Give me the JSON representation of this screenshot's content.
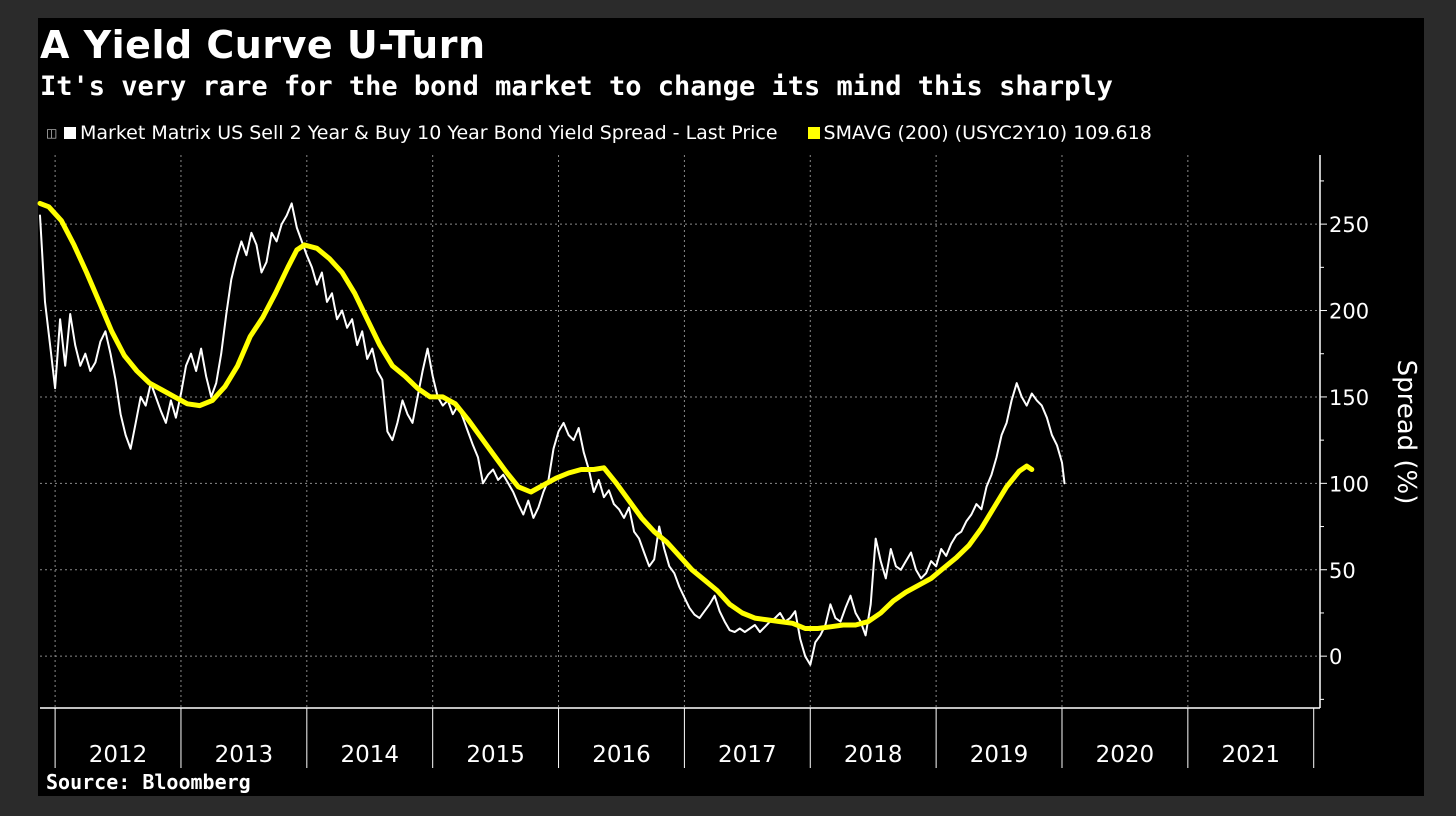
{
  "title": "A Yield Curve U-Turn",
  "subtitle": "It's very rare for the bond market to change its mind this sharply",
  "legend": [
    {
      "label": "Market Matrix US Sell 2 Year & Buy 10 Year Bond Yield Spread - Last Price",
      "color": "#ffffff"
    },
    {
      "label": "SMAVG (200) (USYC2Y10) 109.618",
      "color": "#ffff00"
    }
  ],
  "source": "Source: Bloomberg",
  "colors": {
    "background": "#000000",
    "frame": "#2b2b2b",
    "grid": "#8a8a8a",
    "spread": "#ffffff",
    "sma": "#ffff00"
  },
  "chart_data": {
    "type": "line",
    "title": "A Yield Curve U-Turn",
    "subtitle": "It's very rare for the bond market to change its mind this sharply",
    "ylabel": "Spread (%)",
    "xlabel": "",
    "xlim": [
      2011.38,
      2021.55
    ],
    "ylim": [
      -30,
      290
    ],
    "y_ticks": [
      0,
      50,
      100,
      150,
      200,
      250
    ],
    "x_ticks": [
      2012,
      2013,
      2014,
      2015,
      2016,
      2017,
      2018,
      2019,
      2020,
      2021
    ],
    "grid": true,
    "legend_position": "top",
    "series": [
      {
        "name": "Market Matrix US Sell 2 Year & Buy 10 Year Bond Yield Spread - Last Price",
        "color": "#ffffff",
        "points": [
          [
            2011.38,
            255
          ],
          [
            2011.42,
            205
          ],
          [
            2011.46,
            180
          ],
          [
            2011.5,
            155
          ],
          [
            2011.54,
            195
          ],
          [
            2011.58,
            168
          ],
          [
            2011.62,
            198
          ],
          [
            2011.66,
            180
          ],
          [
            2011.7,
            168
          ],
          [
            2011.74,
            175
          ],
          [
            2011.78,
            165
          ],
          [
            2011.82,
            170
          ],
          [
            2011.86,
            182
          ],
          [
            2011.9,
            188
          ],
          [
            2011.94,
            175
          ],
          [
            2011.98,
            160
          ],
          [
            2012.02,
            140
          ],
          [
            2012.06,
            128
          ],
          [
            2012.1,
            120
          ],
          [
            2012.14,
            135
          ],
          [
            2012.18,
            150
          ],
          [
            2012.22,
            145
          ],
          [
            2012.26,
            158
          ],
          [
            2012.3,
            150
          ],
          [
            2012.34,
            142
          ],
          [
            2012.38,
            135
          ],
          [
            2012.42,
            148
          ],
          [
            2012.46,
            138
          ],
          [
            2012.5,
            152
          ],
          [
            2012.54,
            168
          ],
          [
            2012.58,
            175
          ],
          [
            2012.62,
            165
          ],
          [
            2012.66,
            178
          ],
          [
            2012.7,
            162
          ],
          [
            2012.74,
            150
          ],
          [
            2012.78,
            158
          ],
          [
            2012.82,
            175
          ],
          [
            2012.86,
            198
          ],
          [
            2012.9,
            218
          ],
          [
            2012.94,
            230
          ],
          [
            2012.98,
            240
          ],
          [
            2013.02,
            232
          ],
          [
            2013.06,
            245
          ],
          [
            2013.1,
            238
          ],
          [
            2013.14,
            222
          ],
          [
            2013.18,
            228
          ],
          [
            2013.22,
            245
          ],
          [
            2013.26,
            240
          ],
          [
            2013.3,
            250
          ],
          [
            2013.34,
            255
          ],
          [
            2013.38,
            262
          ],
          [
            2013.42,
            248
          ],
          [
            2013.46,
            240
          ],
          [
            2013.5,
            232
          ],
          [
            2013.54,
            225
          ],
          [
            2013.58,
            215
          ],
          [
            2013.62,
            222
          ],
          [
            2013.66,
            205
          ],
          [
            2013.7,
            210
          ],
          [
            2013.74,
            195
          ],
          [
            2013.78,
            200
          ],
          [
            2013.82,
            190
          ],
          [
            2013.86,
            195
          ],
          [
            2013.9,
            180
          ],
          [
            2013.94,
            188
          ],
          [
            2013.98,
            172
          ],
          [
            2014.02,
            178
          ],
          [
            2014.06,
            165
          ],
          [
            2014.1,
            160
          ],
          [
            2014.14,
            130
          ],
          [
            2014.18,
            125
          ],
          [
            2014.22,
            135
          ],
          [
            2014.26,
            148
          ],
          [
            2014.3,
            140
          ],
          [
            2014.34,
            135
          ],
          [
            2014.38,
            150
          ],
          [
            2014.42,
            165
          ],
          [
            2014.46,
            178
          ],
          [
            2014.5,
            162
          ],
          [
            2014.54,
            150
          ],
          [
            2014.58,
            145
          ],
          [
            2014.62,
            148
          ],
          [
            2014.66,
            140
          ],
          [
            2014.7,
            145
          ],
          [
            2014.74,
            138
          ],
          [
            2014.78,
            130
          ],
          [
            2014.82,
            122
          ],
          [
            2014.86,
            115
          ],
          [
            2014.9,
            100
          ],
          [
            2014.94,
            105
          ],
          [
            2014.98,
            108
          ],
          [
            2015.02,
            102
          ],
          [
            2015.06,
            105
          ],
          [
            2015.1,
            100
          ],
          [
            2015.14,
            95
          ],
          [
            2015.18,
            88
          ],
          [
            2015.22,
            82
          ],
          [
            2015.26,
            90
          ],
          [
            2015.3,
            80
          ],
          [
            2015.34,
            86
          ],
          [
            2015.38,
            95
          ],
          [
            2015.42,
            102
          ],
          [
            2015.46,
            120
          ],
          [
            2015.5,
            130
          ],
          [
            2015.54,
            135
          ],
          [
            2015.58,
            128
          ],
          [
            2015.62,
            125
          ],
          [
            2015.66,
            132
          ],
          [
            2015.7,
            118
          ],
          [
            2015.74,
            108
          ],
          [
            2015.78,
            95
          ],
          [
            2015.82,
            102
          ],
          [
            2015.86,
            92
          ],
          [
            2015.9,
            96
          ],
          [
            2015.94,
            88
          ],
          [
            2015.98,
            85
          ],
          [
            2016.02,
            80
          ],
          [
            2016.06,
            86
          ],
          [
            2016.1,
            72
          ],
          [
            2016.14,
            68
          ],
          [
            2016.18,
            60
          ],
          [
            2016.22,
            52
          ],
          [
            2016.26,
            56
          ],
          [
            2016.3,
            75
          ],
          [
            2016.34,
            62
          ],
          [
            2016.38,
            52
          ],
          [
            2016.42,
            48
          ],
          [
            2016.46,
            40
          ],
          [
            2016.5,
            34
          ],
          [
            2016.54,
            28
          ],
          [
            2016.58,
            24
          ],
          [
            2016.62,
            22
          ],
          [
            2016.66,
            26
          ],
          [
            2016.7,
            30
          ],
          [
            2016.74,
            35
          ],
          [
            2016.78,
            26
          ],
          [
            2016.82,
            20
          ],
          [
            2016.86,
            15
          ],
          [
            2016.9,
            14
          ],
          [
            2016.94,
            16
          ],
          [
            2016.98,
            14
          ],
          [
            2017.02,
            16
          ],
          [
            2017.06,
            18
          ],
          [
            2017.1,
            14
          ],
          [
            2017.14,
            17
          ],
          [
            2017.18,
            20
          ],
          [
            2017.22,
            22
          ],
          [
            2017.26,
            25
          ],
          [
            2017.3,
            20
          ],
          [
            2017.34,
            22
          ],
          [
            2017.38,
            26
          ],
          [
            2017.42,
            10
          ],
          [
            2017.46,
            0
          ],
          [
            2017.5,
            -5
          ],
          [
            2017.54,
            8
          ],
          [
            2017.58,
            12
          ],
          [
            2017.62,
            18
          ],
          [
            2017.66,
            30
          ],
          [
            2017.7,
            22
          ],
          [
            2017.74,
            20
          ],
          [
            2017.78,
            28
          ],
          [
            2017.82,
            35
          ],
          [
            2017.86,
            25
          ],
          [
            2017.9,
            20
          ],
          [
            2017.94,
            12
          ],
          [
            2017.98,
            30
          ],
          [
            2018.02,
            68
          ],
          [
            2018.06,
            55
          ],
          [
            2018.1,
            45
          ],
          [
            2018.14,
            62
          ],
          [
            2018.18,
            52
          ],
          [
            2018.22,
            50
          ],
          [
            2018.26,
            55
          ],
          [
            2018.3,
            60
          ],
          [
            2018.34,
            50
          ],
          [
            2018.38,
            45
          ],
          [
            2018.42,
            48
          ],
          [
            2018.46,
            55
          ],
          [
            2018.5,
            52
          ],
          [
            2018.54,
            62
          ],
          [
            2018.58,
            58
          ],
          [
            2018.62,
            65
          ],
          [
            2018.66,
            70
          ],
          [
            2018.7,
            72
          ],
          [
            2018.74,
            78
          ],
          [
            2018.78,
            82
          ],
          [
            2018.82,
            88
          ],
          [
            2018.86,
            85
          ],
          [
            2018.9,
            98
          ],
          [
            2018.94,
            105
          ],
          [
            2018.98,
            115
          ],
          [
            2019.02,
            128
          ],
          [
            2019.06,
            135
          ],
          [
            2019.1,
            148
          ],
          [
            2019.14,
            158
          ],
          [
            2019.18,
            150
          ],
          [
            2019.22,
            145
          ],
          [
            2019.26,
            152
          ],
          [
            2019.3,
            148
          ],
          [
            2019.34,
            145
          ],
          [
            2019.38,
            138
          ],
          [
            2019.42,
            128
          ],
          [
            2019.46,
            122
          ],
          [
            2019.5,
            112
          ],
          [
            2019.52,
            100
          ]
        ]
      },
      {
        "name": "SMAVG (200) (USYC2Y10) 109.618",
        "color": "#ffff00",
        "points": [
          [
            2011.38,
            262
          ],
          [
            2011.45,
            260
          ],
          [
            2011.55,
            252
          ],
          [
            2011.65,
            238
          ],
          [
            2011.75,
            222
          ],
          [
            2011.85,
            205
          ],
          [
            2011.95,
            188
          ],
          [
            2012.05,
            174
          ],
          [
            2012.15,
            165
          ],
          [
            2012.25,
            158
          ],
          [
            2012.35,
            154
          ],
          [
            2012.45,
            150
          ],
          [
            2012.55,
            146
          ],
          [
            2012.65,
            145
          ],
          [
            2012.75,
            148
          ],
          [
            2012.85,
            156
          ],
          [
            2012.95,
            168
          ],
          [
            2013.05,
            185
          ],
          [
            2013.15,
            196
          ],
          [
            2013.25,
            210
          ],
          [
            2013.35,
            225
          ],
          [
            2013.42,
            235
          ],
          [
            2013.48,
            238
          ],
          [
            2013.58,
            236
          ],
          [
            2013.68,
            230
          ],
          [
            2013.78,
            222
          ],
          [
            2013.88,
            210
          ],
          [
            2013.98,
            195
          ],
          [
            2014.08,
            180
          ],
          [
            2014.18,
            168
          ],
          [
            2014.28,
            162
          ],
          [
            2014.38,
            155
          ],
          [
            2014.48,
            150
          ],
          [
            2014.58,
            150
          ],
          [
            2014.68,
            146
          ],
          [
            2014.78,
            137
          ],
          [
            2014.88,
            127
          ],
          [
            2014.98,
            117
          ],
          [
            2015.08,
            107
          ],
          [
            2015.18,
            98
          ],
          [
            2015.28,
            95
          ],
          [
            2015.38,
            99
          ],
          [
            2015.48,
            103
          ],
          [
            2015.58,
            106
          ],
          [
            2015.68,
            108
          ],
          [
            2015.78,
            108
          ],
          [
            2015.86,
            109
          ],
          [
            2015.96,
            100
          ],
          [
            2016.06,
            90
          ],
          [
            2016.16,
            80
          ],
          [
            2016.26,
            72
          ],
          [
            2016.36,
            66
          ],
          [
            2016.46,
            58
          ],
          [
            2016.56,
            50
          ],
          [
            2016.66,
            44
          ],
          [
            2016.76,
            38
          ],
          [
            2016.86,
            30
          ],
          [
            2016.96,
            25
          ],
          [
            2017.06,
            22
          ],
          [
            2017.16,
            21
          ],
          [
            2017.26,
            20
          ],
          [
            2017.36,
            19
          ],
          [
            2017.46,
            16
          ],
          [
            2017.56,
            16
          ],
          [
            2017.66,
            17
          ],
          [
            2017.76,
            18
          ],
          [
            2017.86,
            18
          ],
          [
            2017.96,
            20
          ],
          [
            2018.06,
            25
          ],
          [
            2018.16,
            32
          ],
          [
            2018.26,
            37
          ],
          [
            2018.36,
            41
          ],
          [
            2018.46,
            45
          ],
          [
            2018.56,
            51
          ],
          [
            2018.66,
            57
          ],
          [
            2018.76,
            64
          ],
          [
            2018.86,
            74
          ],
          [
            2018.96,
            86
          ],
          [
            2019.06,
            98
          ],
          [
            2019.16,
            107
          ],
          [
            2019.22,
            110
          ],
          [
            2019.26,
            108
          ]
        ]
      }
    ]
  }
}
